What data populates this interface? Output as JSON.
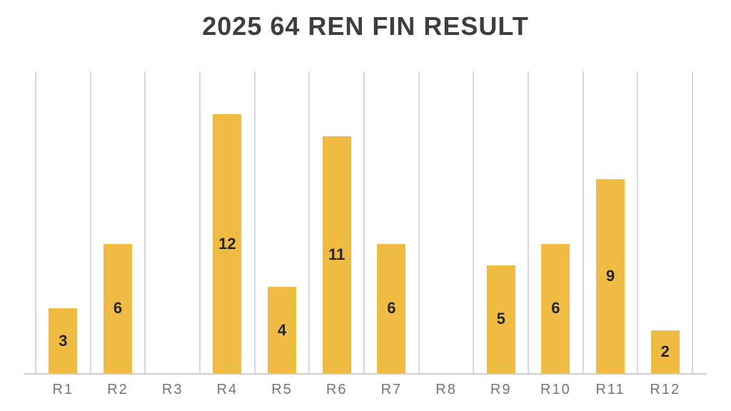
{
  "chart_data": {
    "type": "bar",
    "title": "2025 64 REN FIN RESULT",
    "categories": [
      "R1",
      "R2",
      "R3",
      "R4",
      "R5",
      "R6",
      "R7",
      "R8",
      "R9",
      "R10",
      "R11",
      "R12"
    ],
    "values": [
      3,
      6,
      0,
      12,
      4,
      11,
      6,
      0,
      5,
      6,
      9,
      2
    ],
    "xlabel": "",
    "ylabel": "",
    "ylim": [
      0,
      14
    ],
    "grid": "vertical-category-boundaries-only",
    "legend": "none",
    "data_label_position": "center-of-bar",
    "bars_shown": 10,
    "empty_categories": [
      "R3",
      "R8"
    ]
  },
  "colors": {
    "background": "#ffffff",
    "bar": "#efbb43",
    "title_text": "#3e3e3e",
    "value_label_text": "#262626",
    "axis_label_text": "#757575",
    "gridline": "#d8d8d8",
    "axis_line": "#cfcfcf"
  }
}
